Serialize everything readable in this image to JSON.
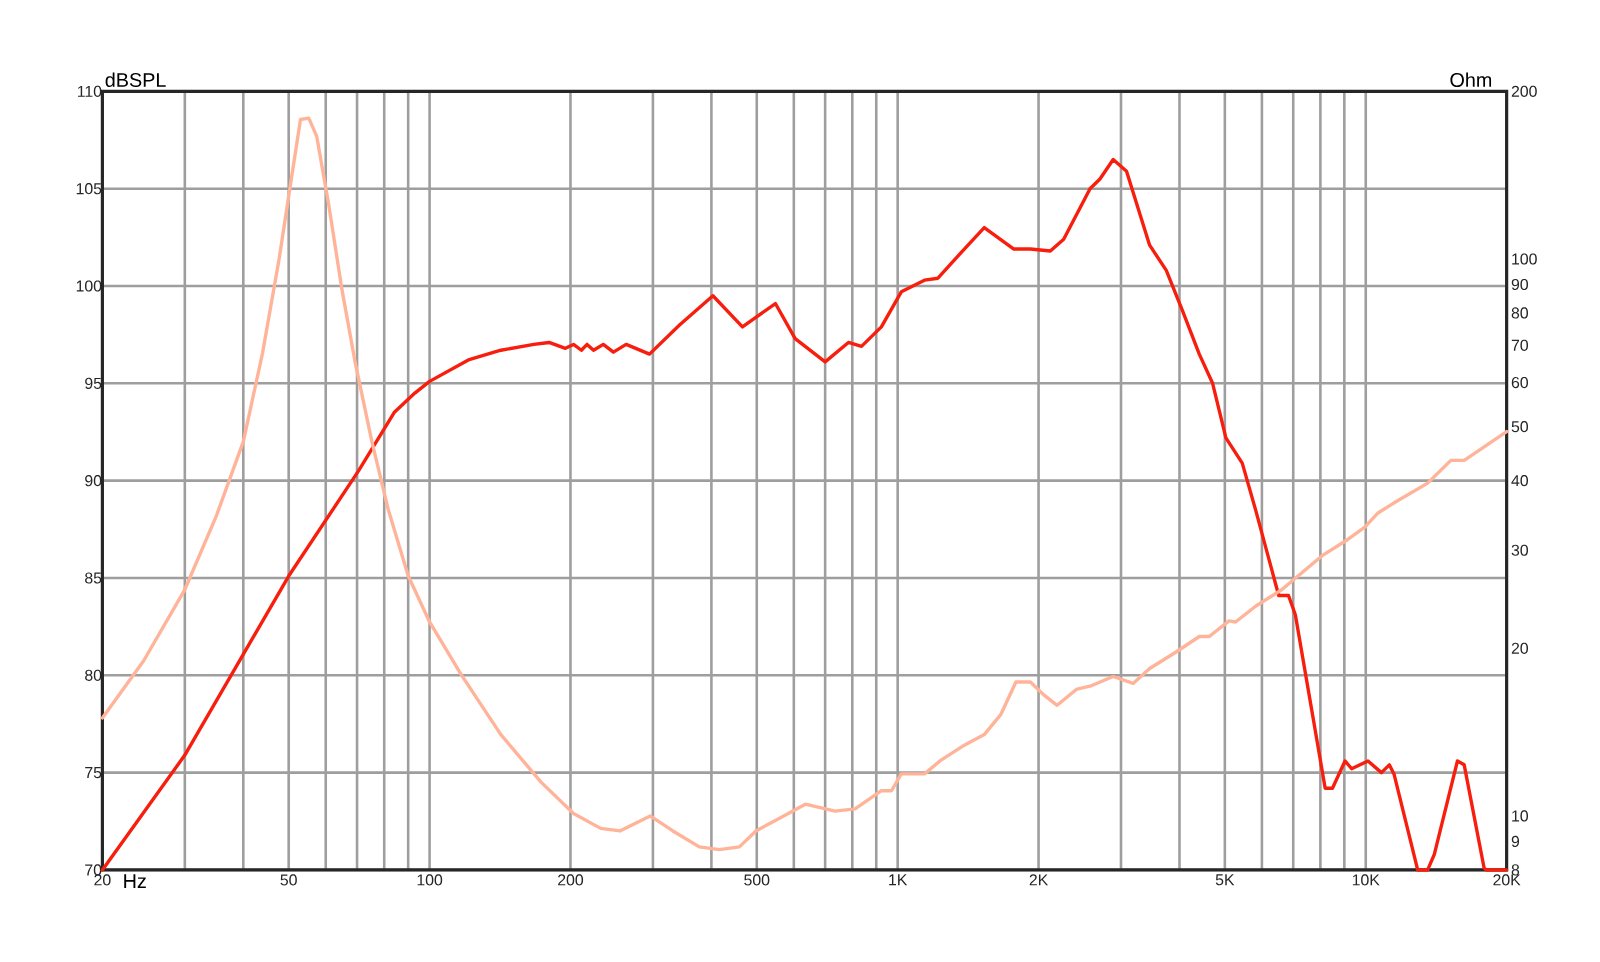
{
  "chart_data": [
    {
      "type": "line",
      "xlabel": "Hz",
      "ylabel": "dBSPL",
      "log": "x",
      "grid": true,
      "xlim": [
        20,
        20000
      ],
      "xticks": [
        {
          "value": 20,
          "label": "20"
        },
        {
          "value": 30,
          "label": null
        },
        {
          "value": 40,
          "label": null
        },
        {
          "value": 50,
          "label": "50"
        },
        {
          "value": 60,
          "label": null
        },
        {
          "value": 70,
          "label": null
        },
        {
          "value": 80,
          "label": null
        },
        {
          "value": 90,
          "label": null
        },
        {
          "value": 100,
          "label": "100"
        },
        {
          "value": 200,
          "label": "200"
        },
        {
          "value": 300,
          "label": null
        },
        {
          "value": 400,
          "label": null
        },
        {
          "value": 500,
          "label": "500"
        },
        {
          "value": 600,
          "label": null
        },
        {
          "value": 700,
          "label": null
        },
        {
          "value": 800,
          "label": null
        },
        {
          "value": 900,
          "label": null
        },
        {
          "value": 1000,
          "label": "1K"
        },
        {
          "value": 2000,
          "label": "2K"
        },
        {
          "value": 3000,
          "label": null
        },
        {
          "value": 4000,
          "label": null
        },
        {
          "value": 5000,
          "label": "5K"
        },
        {
          "value": 6000,
          "label": null
        },
        {
          "value": 7000,
          "label": null
        },
        {
          "value": 8000,
          "label": null
        },
        {
          "value": 9000,
          "label": null
        },
        {
          "value": 10000,
          "label": "10K"
        },
        {
          "value": 20000,
          "label": "20K"
        }
      ],
      "ylim": [
        70,
        110
      ],
      "yticks": [
        70,
        75,
        80,
        85,
        90,
        95,
        100,
        105,
        110
      ],
      "series": [
        {
          "color": "#f81e0e",
          "x": [
            20,
            30,
            50,
            70.5,
            84,
            93,
            100,
            121,
            142,
            167,
            180,
            195,
            203,
            211,
            217,
            224,
            235,
            247,
            263,
            295,
            342,
            403,
            466,
            548,
            604,
            700,
            785,
            837,
            923,
            1018,
            1141,
            1219,
            1388,
            1531,
            1771,
            1921,
            2119,
            2263,
            2576,
            2705,
            2887,
            3083,
            3454,
            3749,
            4065,
            4409,
            4708,
            5026,
            5447,
            5817,
            6517,
            6840,
            7075,
            8190,
            8490,
            9030,
            9330,
            10110,
            10800,
            11230,
            11500,
            12910,
            13560,
            14010,
            15700,
            16230,
            17900,
            18100,
            20000
          ],
          "values": [
            70,
            75.9,
            85.1,
            90.5,
            93.5,
            94.5,
            95.1,
            96.2,
            96.7,
            97.0,
            97.1,
            96.8,
            97.0,
            96.7,
            97.0,
            96.7,
            97.0,
            96.6,
            97.0,
            96.5,
            98.0,
            99.5,
            97.9,
            99.1,
            97.3,
            96.1,
            97.1,
            96.9,
            97.9,
            99.7,
            100.3,
            100.4,
            101.9,
            103.0,
            101.9,
            101.9,
            101.8,
            102.4,
            105.0,
            105.5,
            106.5,
            105.9,
            102.1,
            100.8,
            98.7,
            96.5,
            95.0,
            92.2,
            90.9,
            88.5,
            84.1,
            84.1,
            83.1,
            74.2,
            74.2,
            75.6,
            75.2,
            75.6,
            75.0,
            75.4,
            74.9,
            70,
            70,
            70.8,
            75.6,
            75.4,
            70.1,
            70,
            70
          ]
        }
      ]
    },
    {
      "type": "line",
      "ylabel": "Ohm",
      "log": "xy",
      "tick_labels": "y",
      "xlim": [
        20,
        20000
      ],
      "ylim": [
        8,
        200
      ],
      "yticks": [
        8,
        9,
        10,
        20,
        30,
        40,
        50,
        60,
        70,
        80,
        90,
        100,
        200
      ],
      "series": [
        {
          "color": "#ffb49a",
          "x": [
            20,
            24.5,
            30,
            35,
            40,
            44,
            47.7,
            50.9,
            53,
            55.2,
            57.4,
            60.9,
            65,
            69.4,
            75.3,
            81.6,
            90,
            100,
            117,
            142,
            173,
            203,
            232,
            255,
            296,
            331,
            377,
            416,
            459,
            498,
            558,
            635,
            735,
            811,
            923,
            970,
            1018,
            1141,
            1238,
            1388,
            1531,
            1660,
            1789,
            1921,
            2052,
            2191,
            2415,
            2576,
            2887,
            3184,
            3454,
            3935,
            4409,
            4630,
            5104,
            5270,
            5817,
            6624,
            8055,
            9172,
            9955,
            10620,
            11500,
            13560,
            15200,
            16230,
            20000
          ],
          "values": [
            15,
            19,
            25.5,
            34.5,
            47,
            68,
            100,
            143,
            178,
            179,
            166,
            125,
            88,
            65,
            47,
            35.5,
            27,
            22.3,
            17.9,
            14,
            11.5,
            10.1,
            9.5,
            9.4,
            10,
            9.4,
            8.8,
            8.7,
            8.8,
            9.4,
            9.9,
            10.5,
            10.2,
            10.3,
            11.1,
            11.1,
            11.9,
            11.9,
            12.6,
            13.4,
            14,
            15.2,
            17.4,
            17.4,
            16.5,
            15.8,
            16.9,
            17.1,
            17.8,
            17.3,
            18.4,
            19.7,
            21,
            21,
            22.4,
            22.3,
            23.8,
            25.5,
            29.3,
            31.4,
            33,
            35,
            36.5,
            39.6,
            43.5,
            43.5,
            49
          ]
        }
      ]
    }
  ]
}
